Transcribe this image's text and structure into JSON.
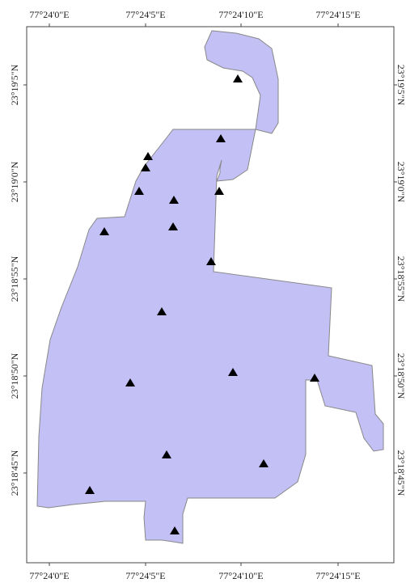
{
  "colors": {
    "area_fill": "#c2c0f4",
    "area_stroke": "#888888",
    "frame": "#444444",
    "marker": "#000000"
  },
  "marker_shape": "triangle",
  "axes": {
    "longitude_labels": [
      "77°24'0\"E",
      "77°24'5\"E",
      "77°24'10\"E",
      "77°24'15\"E"
    ],
    "latitude_labels": [
      "23°19'5\"N",
      "23°19'0\"N",
      "23°18'55\"N",
      "23°18'50\"N",
      "23°18'45\"N"
    ]
  }
}
